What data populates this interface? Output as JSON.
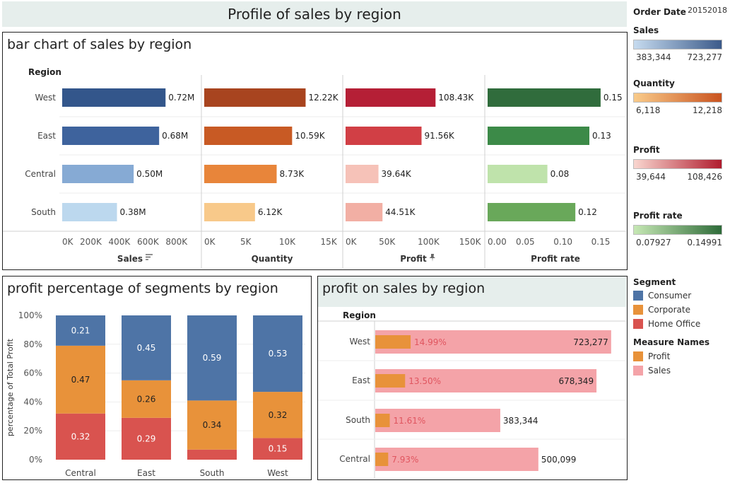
{
  "page_title": "Profile of sales by region",
  "filters": {
    "order_date_label": "Order Date",
    "order_date_value": "20152018"
  },
  "legends": {
    "sales": {
      "title": "Sales",
      "min": "383,344",
      "max": "723,277",
      "color_lo": "#c6dbef",
      "color_hi": "#3b5a8a"
    },
    "quantity": {
      "title": "Quantity",
      "min": "6,118",
      "max": "12,218",
      "color_lo": "#f9cb8a",
      "color_hi": "#c9531f"
    },
    "profit": {
      "title": "Profit",
      "min": "39,644",
      "max": "108,426",
      "color_lo": "#f9d6cf",
      "color_hi": "#b01c2e"
    },
    "profit_rate": {
      "title": "Profit rate",
      "min": "0.07927",
      "max": "0.14991",
      "color_lo": "#c6e8b4",
      "color_hi": "#2e6b39"
    },
    "segment": {
      "title": "Segment",
      "items": [
        {
          "label": "Consumer",
          "color": "#4e74a6"
        },
        {
          "label": "Corporate",
          "color": "#e8923a"
        },
        {
          "label": "Home Office",
          "color": "#d9534f"
        }
      ]
    },
    "measure_names": {
      "title": "Measure Names",
      "items": [
        {
          "label": "Profit",
          "color": "#e8923a"
        },
        {
          "label": "Sales",
          "color": "#f4a3a8"
        }
      ]
    }
  },
  "chart_data": [
    {
      "type": "bar",
      "title": "bar chart of sales by region",
      "row_header": "Region",
      "categories": [
        "West",
        "East",
        "Central",
        "South"
      ],
      "panels": [
        {
          "name": "Sales",
          "xlabel": "Sales",
          "xlim": [
            0,
            900000
          ],
          "ticks": [
            0,
            200000,
            400000,
            600000,
            800000
          ],
          "tick_labels": [
            "0K",
            "200K",
            "400K",
            "600K",
            "800K"
          ],
          "values": [
            723277,
            678349,
            500099,
            383344
          ],
          "labels": [
            "0.72M",
            "0.68M",
            "0.50M",
            "0.38M"
          ],
          "colors": [
            "#33568b",
            "#3e639d",
            "#86aad4",
            "#bcd8ee"
          ],
          "icon": "sort-icon"
        },
        {
          "name": "Quantity",
          "xlabel": "Quantity",
          "xlim": [
            0,
            15500
          ],
          "ticks": [
            0,
            5000,
            10000,
            15000
          ],
          "tick_labels": [
            "0K",
            "5K",
            "10K",
            "15K"
          ],
          "values": [
            12218,
            10590,
            8730,
            6118
          ],
          "labels": [
            "12.22K",
            "10.59K",
            "8.73K",
            "6.12K"
          ],
          "colors": [
            "#a8441f",
            "#c85a24",
            "#e8853a",
            "#f8c98a"
          ]
        },
        {
          "name": "Profit",
          "xlabel": "Profit",
          "xlim": [
            0,
            155000
          ],
          "ticks": [
            0,
            50000,
            100000,
            150000
          ],
          "tick_labels": [
            "0K",
            "50K",
            "100K",
            "150K"
          ],
          "values": [
            108426,
            91560,
            39644,
            44510
          ],
          "labels": [
            "108.43K",
            "91.56K",
            "39.64K",
            "44.51K"
          ],
          "colors": [
            "#b51f36",
            "#d13f45",
            "#f6c2b8",
            "#f2afa4"
          ],
          "icon": "pin-icon"
        },
        {
          "name": "Profit rate",
          "xlabel": "Profit rate",
          "xlim": [
            0,
            0.165
          ],
          "ticks": [
            0,
            0.05,
            0.1,
            0.15
          ],
          "tick_labels": [
            "0.00",
            "0.05",
            "0.10",
            "0.15"
          ],
          "values": [
            0.1499,
            0.135,
            0.0793,
            0.1164
          ],
          "labels": [
            "0.15",
            "0.13",
            "0.08",
            "0.12"
          ],
          "colors": [
            "#306c3c",
            "#3c8a48",
            "#bfe3ab",
            "#69a85a"
          ]
        }
      ]
    },
    {
      "type": "bar",
      "stacked": "percent",
      "title": "profit percentage of segments by region",
      "ylabel": "percentage of Total Profit",
      "categories": [
        "Central",
        "East",
        "South",
        "West"
      ],
      "ylim": [
        0,
        1
      ],
      "y_ticks": [
        "0%",
        "20%",
        "40%",
        "60%",
        "80%",
        "100%"
      ],
      "series": [
        {
          "name": "Home Office",
          "color": "#d9534f",
          "values": [
            0.32,
            0.29,
            0.07,
            0.15
          ],
          "labels": [
            "0.32",
            "0.29",
            "",
            "0.15"
          ]
        },
        {
          "name": "Corporate",
          "color": "#e8923a",
          "values": [
            0.47,
            0.26,
            0.34,
            0.32
          ],
          "labels": [
            "0.47",
            "0.26",
            "0.34",
            "0.32"
          ]
        },
        {
          "name": "Consumer",
          "color": "#4e74a6",
          "values": [
            0.21,
            0.45,
            0.59,
            0.53
          ],
          "labels": [
            "0.21",
            "0.45",
            "0.59",
            "0.53"
          ]
        }
      ]
    },
    {
      "type": "bar",
      "orientation": "horizontal",
      "title": "profit on sales by region",
      "row_header": "Region",
      "categories": [
        "West",
        "East",
        "South",
        "Central"
      ],
      "xlim": [
        0,
        780000
      ],
      "series": [
        {
          "name": "Sales",
          "color": "#f4a3a8",
          "values": [
            723277,
            678349,
            383344,
            500099
          ],
          "labels": [
            "723,277",
            "678,349",
            "383,344",
            "500,099"
          ]
        },
        {
          "name": "Profit",
          "color": "#e8923a",
          "values": [
            108426,
            91560,
            44510,
            39644
          ],
          "labels": [
            "14.99%",
            "13.50%",
            "11.61%",
            "7.93%"
          ]
        }
      ]
    }
  ]
}
